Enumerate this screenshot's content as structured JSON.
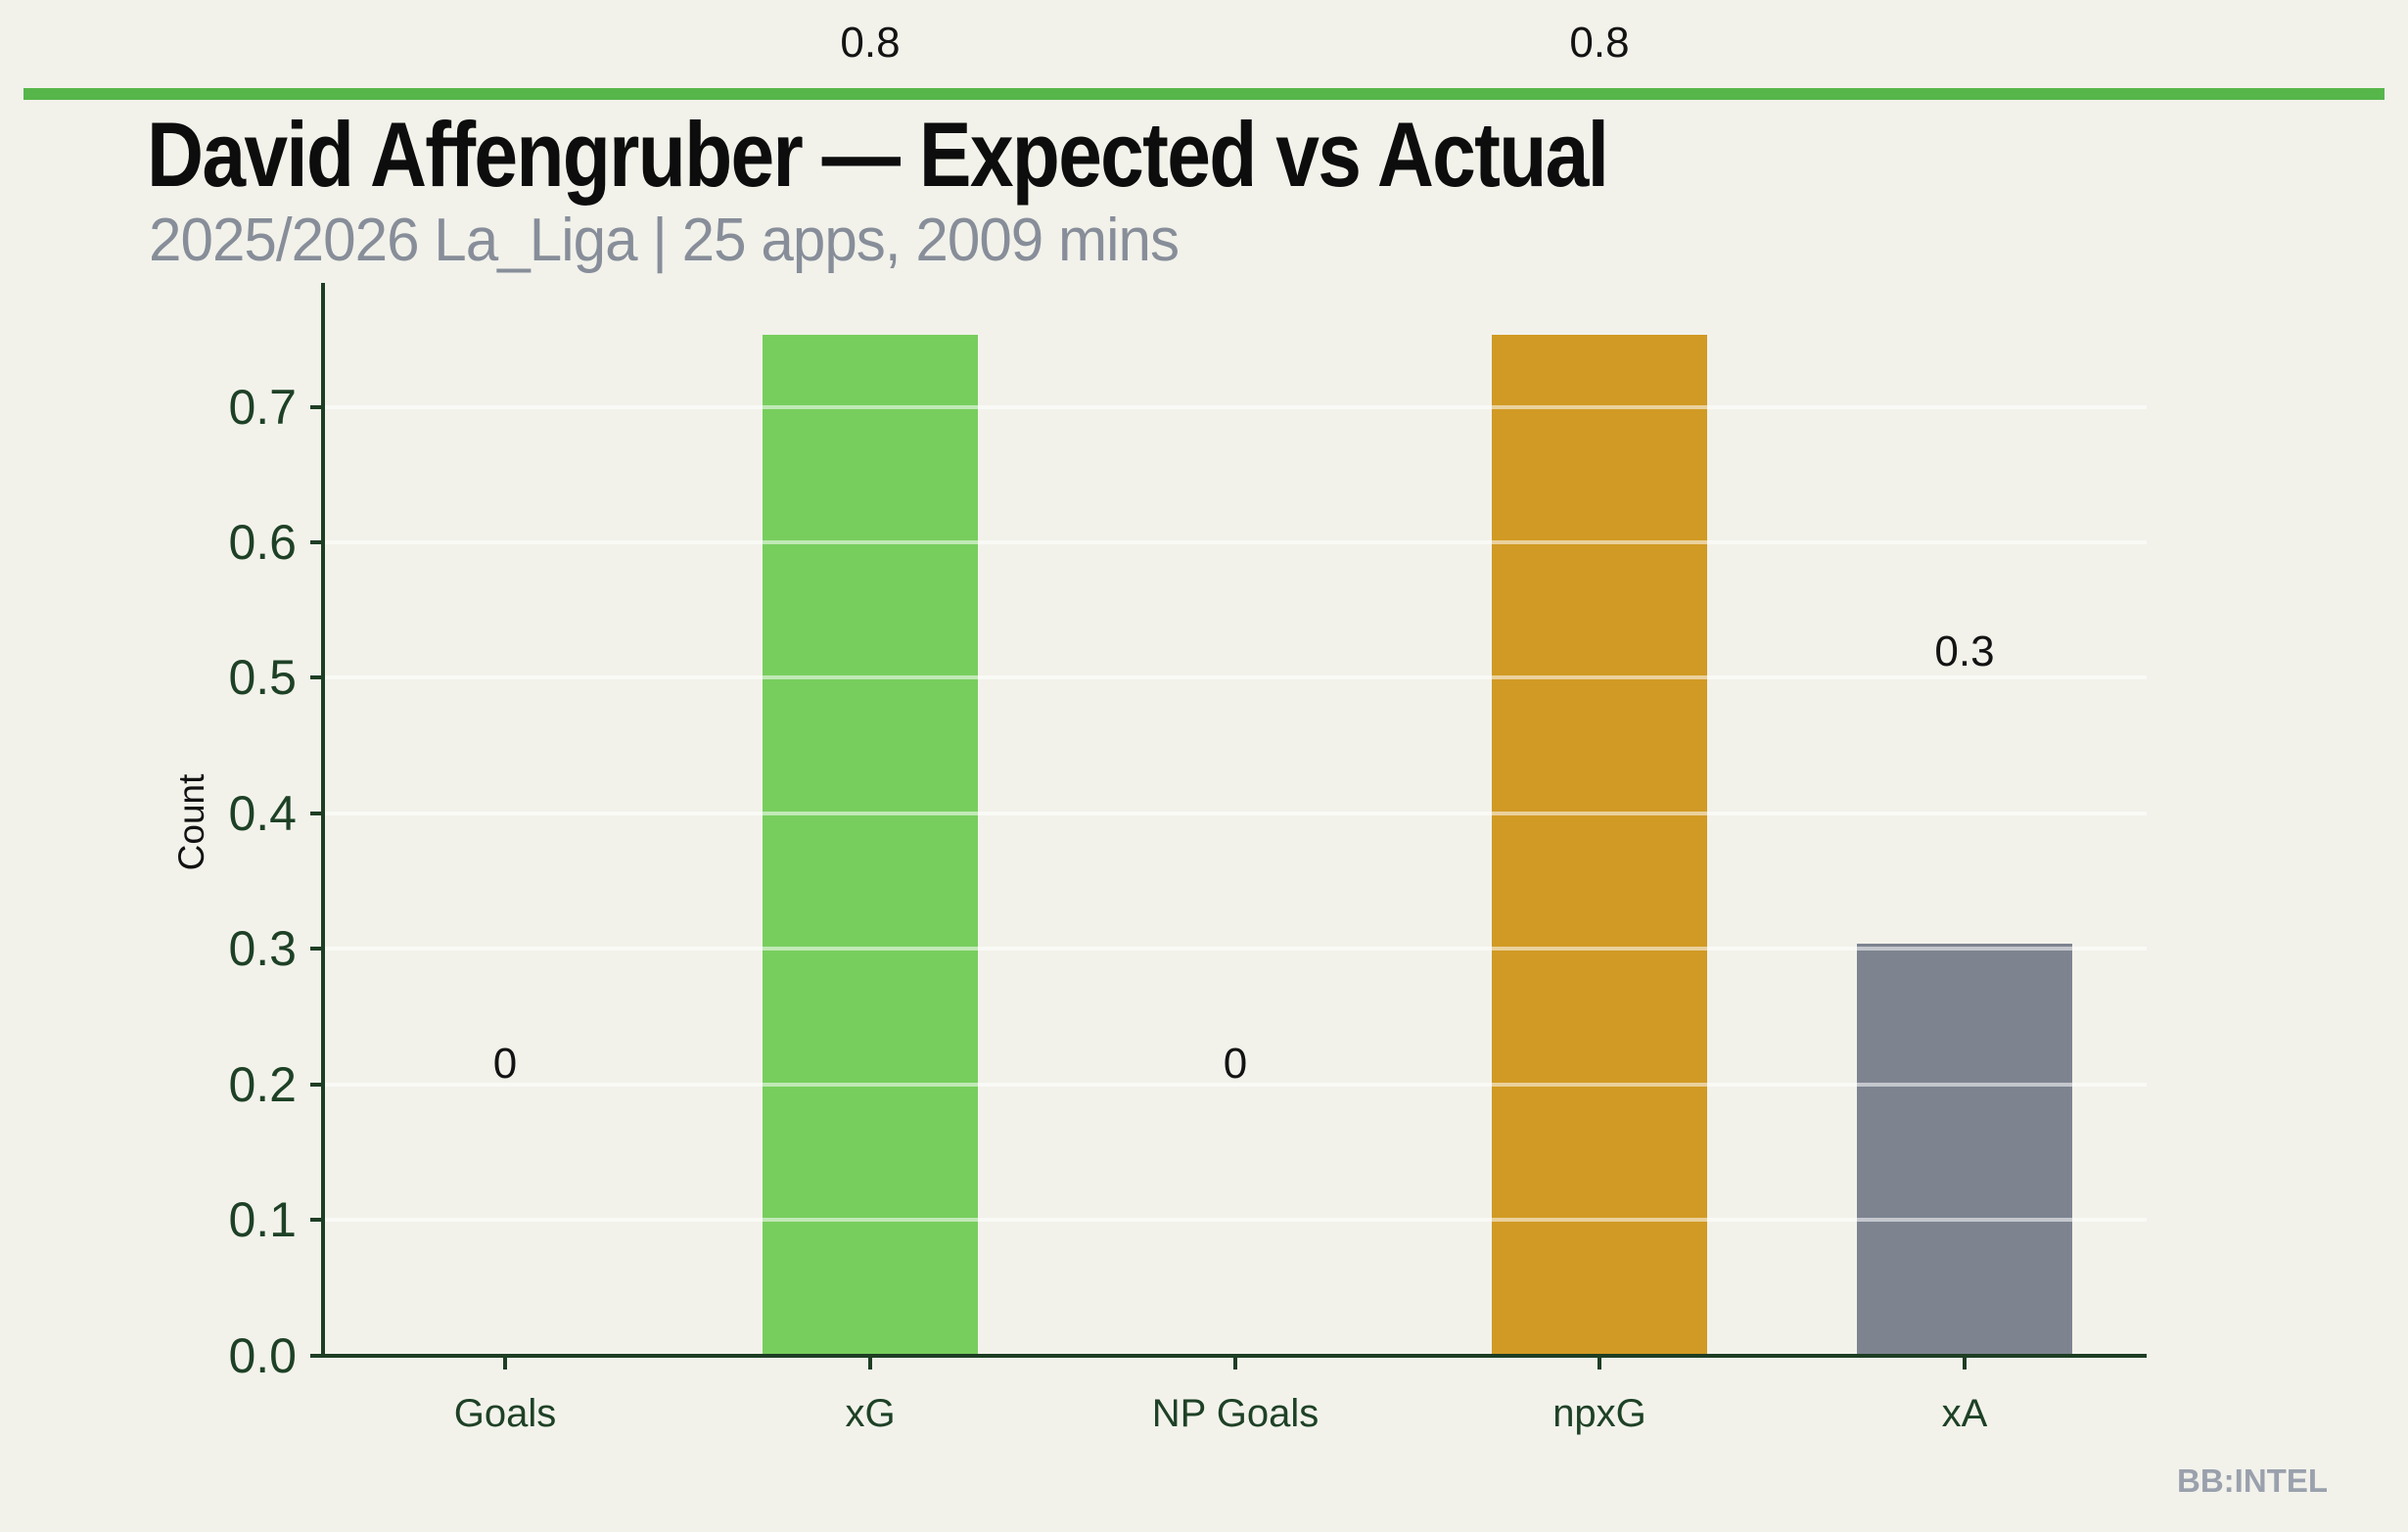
{
  "header": {
    "title": "David Affengruber — Expected vs Actual",
    "subtitle": "2025/2026 La_Liga | 25 apps, 2009 mins",
    "divider_color": "#56b64a"
  },
  "watermark": "BB:INTEL",
  "chart_data": {
    "type": "bar",
    "title": "David Affengruber — Expected vs Actual",
    "subtitle": "2025/2026 La_Liga | 25 apps, 2009 mins",
    "categories": [
      "Goals",
      "xG",
      "NP Goals",
      "npxG",
      "xA"
    ],
    "values": [
      0,
      0.753,
      0,
      0.753,
      0.304
    ],
    "value_labels": [
      "0",
      "0.8",
      "0",
      "0.8",
      "0.3"
    ],
    "bar_colors": [
      "#77ce5d",
      "#77ce5d",
      "#d19a24",
      "#d19a24",
      "#7d8490"
    ],
    "ylabel": "Count",
    "xlabel": "",
    "yticks": [
      "0.0",
      "0.1",
      "0.2",
      "0.3",
      "0.4",
      "0.5",
      "0.6",
      "0.7"
    ],
    "ylim": [
      0,
      0.79
    ],
    "grid": true,
    "legend": "none",
    "colors": {
      "axis": "#1e3e24",
      "tick_label": "#1e4126",
      "value_label": "#131313",
      "axis_title": "#111111",
      "background": "#f2f2eb",
      "gridline": "rgba(255,255,255,0.55)"
    }
  }
}
